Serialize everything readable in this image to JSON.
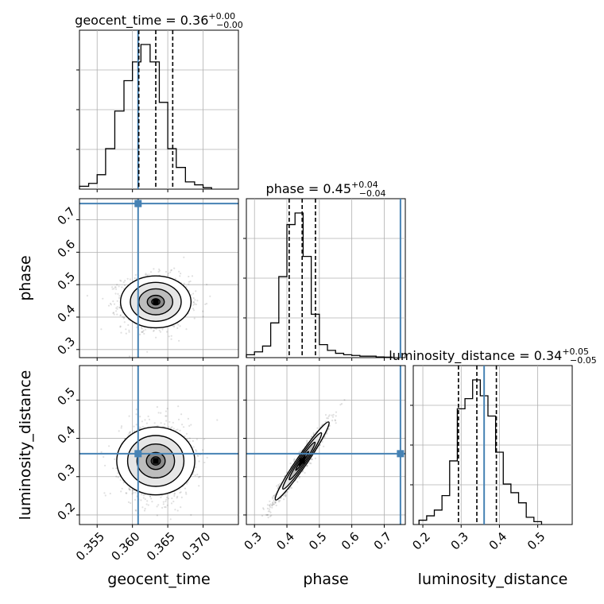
{
  "chart_data": {
    "type": "corner",
    "parameters": [
      {
        "name": "geocent_time",
        "axis_label": "geocent_time",
        "title_prefix": "geocent_time = ",
        "median": "0.36",
        "upper": "+0.00",
        "lower": "−0.00",
        "range": [
          0.3525,
          0.375
        ],
        "ticks": [
          0.355,
          0.36,
          0.365,
          0.37
        ],
        "tick_labels": [
          "0.355",
          "0.360",
          "0.365",
          "0.370"
        ],
        "quantiles": [
          0.3609,
          0.3633,
          0.3657
        ],
        "injection": 0.3608,
        "hist_edges": [
          0.3525,
          0.3538,
          0.355,
          0.3562,
          0.3575,
          0.3588,
          0.36,
          0.3612,
          0.3625,
          0.3638,
          0.365,
          0.3662,
          0.3675,
          0.3688,
          0.37,
          0.3712
        ],
        "hist_values": [
          0.02,
          0.04,
          0.1,
          0.28,
          0.54,
          0.75,
          0.88,
          1.0,
          0.88,
          0.6,
          0.28,
          0.15,
          0.05,
          0.03,
          0.01
        ]
      },
      {
        "name": "phase",
        "axis_label": "phase",
        "title_prefix": "phase = ",
        "median": "0.45",
        "upper": "+0.04",
        "lower": "−0.04",
        "range": [
          0.275,
          0.765
        ],
        "ticks": [
          0.3,
          0.4,
          0.5,
          0.6,
          0.7
        ],
        "tick_labels": [
          "0.3",
          "0.4",
          "0.5",
          "0.6",
          "0.7"
        ],
        "quantiles": [
          0.407,
          0.447,
          0.488
        ],
        "injection": 0.75,
        "hist_edges": [
          0.275,
          0.3,
          0.325,
          0.35,
          0.375,
          0.4,
          0.425,
          0.45,
          0.475,
          0.5,
          0.525,
          0.55,
          0.575,
          0.6,
          0.625,
          0.65,
          0.675,
          0.7,
          0.725
        ],
        "hist_values": [
          0.02,
          0.04,
          0.08,
          0.24,
          0.56,
          0.92,
          1.0,
          0.7,
          0.3,
          0.09,
          0.05,
          0.03,
          0.02,
          0.015,
          0.01,
          0.01,
          0.005,
          0.003
        ]
      },
      {
        "name": "luminosity_distance",
        "axis_label": "luminosity_distance",
        "title_prefix": "luminosity_distance = ",
        "median": "0.34",
        "upper": "+0.05",
        "lower": "−0.05",
        "range": [
          0.175,
          0.59
        ],
        "ticks": [
          0.2,
          0.3,
          0.4,
          0.5
        ],
        "tick_labels": [
          "0.2",
          "0.3",
          "0.4",
          "0.5"
        ],
        "quantiles": [
          0.293,
          0.341,
          0.392
        ],
        "injection": 0.36,
        "hist_edges": [
          0.19,
          0.21,
          0.23,
          0.25,
          0.27,
          0.29,
          0.31,
          0.33,
          0.35,
          0.37,
          0.39,
          0.41,
          0.43,
          0.45,
          0.47,
          0.49,
          0.51
        ],
        "hist_values": [
          0.03,
          0.06,
          0.1,
          0.2,
          0.44,
          0.8,
          0.87,
          1.0,
          0.89,
          0.75,
          0.5,
          0.28,
          0.22,
          0.15,
          0.05,
          0.02
        ]
      }
    ],
    "grid": true,
    "marker_color": "#4682b4",
    "hist_color": "#000000",
    "quantile_line_style": "dashed"
  }
}
